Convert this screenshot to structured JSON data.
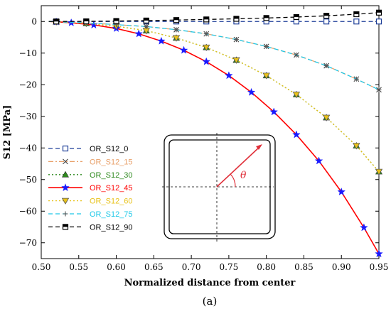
{
  "chart_data": {
    "type": "line",
    "title": "",
    "xlabel": "Normalized distance from center",
    "ylabel": "S12 [MPa]",
    "xlim": [
      0.5,
      0.95
    ],
    "ylim": [
      -75,
      5
    ],
    "x_ticks": [
      "0.50",
      "0.55",
      "0.60",
      "0.65",
      "0.70",
      "0.75",
      "0.80",
      "0.85",
      "0.90",
      "0.95"
    ],
    "y_ticks": [
      "0",
      "−10",
      "−20",
      "−30",
      "−40",
      "−50",
      "−60",
      "−70"
    ],
    "grid": false,
    "legend_position": "lower-left",
    "caption": "(a)",
    "inset": {
      "angle_label": "θ"
    },
    "series": [
      {
        "name": "OR_S12_0",
        "color": "#1f3f99",
        "line_style": "dashed",
        "marker": "open-square",
        "x": [
          0.51,
          0.52,
          0.56,
          0.6,
          0.64,
          0.68,
          0.72,
          0.76,
          0.8,
          0.84,
          0.88,
          0.92,
          0.95
        ],
        "y": [
          0,
          0,
          0,
          0,
          0,
          0,
          0,
          0,
          0,
          0,
          0,
          0,
          0
        ]
      },
      {
        "name": "OR_S12_15",
        "color": "#e8a06a",
        "line_style": "dash-dot",
        "marker": "x",
        "x": [
          0.51,
          0.52,
          0.56,
          0.6,
          0.64,
          0.68,
          0.72,
          0.76,
          0.8,
          0.84,
          0.88,
          0.92,
          0.95
        ],
        "y": [
          0,
          -0.1,
          -0.4,
          -1.0,
          -1.6,
          -2.6,
          -3.9,
          -5.7,
          -7.9,
          -10.6,
          -14.0,
          -18.2,
          -21.6
        ]
      },
      {
        "name": "OR_S12_30",
        "color": "#2e8a1e",
        "line_style": "dotted",
        "marker": "filled-triangle",
        "x": [
          0.51,
          0.52,
          0.56,
          0.6,
          0.64,
          0.68,
          0.72,
          0.76,
          0.8,
          0.84,
          0.88,
          0.92,
          0.95
        ],
        "y": [
          0,
          -0.1,
          -0.6,
          -1.5,
          -2.9,
          -5.2,
          -8.2,
          -12.2,
          -17.1,
          -23.1,
          -30.4,
          -39.3,
          -47.5
        ]
      },
      {
        "name": "OR_S12_45",
        "color": "#ff0000",
        "line_style": "solid",
        "marker": "blue-star",
        "marker_color": "#1a1aff",
        "x": [
          0.51,
          0.52,
          0.54,
          0.57,
          0.6,
          0.63,
          0.66,
          0.69,
          0.72,
          0.75,
          0.78,
          0.81,
          0.84,
          0.87,
          0.9,
          0.93,
          0.95
        ],
        "y": [
          0,
          -0.1,
          -0.4,
          -1.1,
          -2.2,
          -3.9,
          -6.2,
          -9.1,
          -12.7,
          -17.1,
          -22.4,
          -28.6,
          -35.8,
          -44.1,
          -53.9,
          -65.2,
          -73.5
        ]
      },
      {
        "name": "OR_S12_60",
        "color": "#e8c21a",
        "line_style": "dotted",
        "marker": "open-triangle-down",
        "x": [
          0.51,
          0.52,
          0.56,
          0.6,
          0.64,
          0.68,
          0.72,
          0.76,
          0.8,
          0.84,
          0.88,
          0.92,
          0.95
        ],
        "y": [
          0,
          -0.1,
          -0.6,
          -1.5,
          -2.9,
          -5.2,
          -8.2,
          -12.2,
          -17.1,
          -23.1,
          -30.4,
          -39.3,
          -47.5
        ]
      },
      {
        "name": "OR_S12_75",
        "color": "#1ec8e8",
        "line_style": "dashed",
        "marker": "plus",
        "x": [
          0.51,
          0.52,
          0.56,
          0.6,
          0.64,
          0.68,
          0.72,
          0.76,
          0.8,
          0.84,
          0.88,
          0.92,
          0.95
        ],
        "y": [
          0,
          -0.1,
          -0.4,
          -1.0,
          -1.6,
          -2.6,
          -3.9,
          -5.7,
          -7.9,
          -10.6,
          -14.0,
          -18.2,
          -21.6
        ]
      },
      {
        "name": "OR_S12_90",
        "color": "#000000",
        "line_style": "dashed",
        "marker": "half-square",
        "x": [
          0.51,
          0.52,
          0.56,
          0.6,
          0.64,
          0.68,
          0.72,
          0.76,
          0.8,
          0.84,
          0.88,
          0.92,
          0.95
        ],
        "y": [
          0,
          0,
          0.05,
          0.15,
          0.3,
          0.45,
          0.65,
          0.85,
          1.1,
          1.4,
          1.8,
          2.3,
          2.8
        ]
      }
    ]
  }
}
